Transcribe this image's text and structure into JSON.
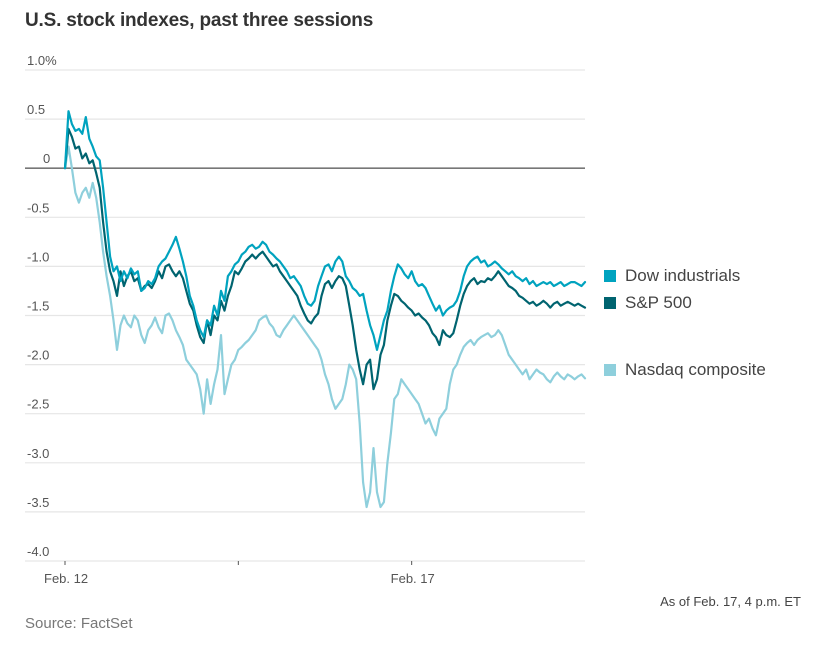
{
  "title": "U.S. stock indexes, past three sessions",
  "note": "As of Feb. 17, 4 p.m. ET",
  "source": "Source: FactSet",
  "colors": {
    "dow": "#00a3bf",
    "sp": "#006470",
    "nasdaq": "#8ecfdc",
    "grid": "#e6e6e6",
    "zero": "#777777",
    "text": "#555555"
  },
  "chart_data": {
    "type": "line",
    "title": "U.S. stock indexes, past three sessions",
    "xlabel": "",
    "ylabel": "",
    "ylim": [
      -4.0,
      1.0
    ],
    "xlim": [
      0,
      3
    ],
    "x_unit": "trading sessions elapsed",
    "yticks": [
      1.0,
      0.5,
      0,
      -0.5,
      -1.0,
      -1.5,
      -2.0,
      -2.5,
      -3.0,
      -3.5,
      -4.0
    ],
    "ytick_labels": [
      "1.0%",
      "0.5",
      "0",
      "-0.5",
      "-1.0",
      "-1.5",
      "-2.0",
      "-2.5",
      "-3.0",
      "-3.5",
      "-4.0"
    ],
    "xticks": [
      0,
      1,
      2
    ],
    "xtick_labels": [
      "Feb. 12",
      "",
      "Feb. 17"
    ],
    "grid": true,
    "legend_position": "right",
    "x": [
      0.0,
      0.02,
      0.04,
      0.06,
      0.08,
      0.1,
      0.12,
      0.14,
      0.16,
      0.18,
      0.2,
      0.22,
      0.24,
      0.26,
      0.28,
      0.3,
      0.32,
      0.34,
      0.36,
      0.38,
      0.4,
      0.42,
      0.44,
      0.46,
      0.48,
      0.5,
      0.52,
      0.54,
      0.56,
      0.58,
      0.6,
      0.62,
      0.64,
      0.66,
      0.68,
      0.7,
      0.72,
      0.74,
      0.76,
      0.78,
      0.8,
      0.82,
      0.84,
      0.86,
      0.88,
      0.9,
      0.92,
      0.94,
      0.96,
      0.98,
      1.0,
      1.02,
      1.04,
      1.06,
      1.08,
      1.1,
      1.12,
      1.14,
      1.16,
      1.18,
      1.2,
      1.22,
      1.24,
      1.26,
      1.28,
      1.3,
      1.32,
      1.34,
      1.36,
      1.38,
      1.4,
      1.42,
      1.44,
      1.46,
      1.48,
      1.5,
      1.52,
      1.54,
      1.56,
      1.58,
      1.6,
      1.62,
      1.64,
      1.66,
      1.68,
      1.7,
      1.72,
      1.74,
      1.76,
      1.78,
      1.8,
      1.82,
      1.84,
      1.86,
      1.88,
      1.9,
      1.92,
      1.94,
      1.96,
      1.98,
      2.0,
      2.02,
      2.04,
      2.06,
      2.08,
      2.1,
      2.12,
      2.14,
      2.16,
      2.18,
      2.2,
      2.22,
      2.24,
      2.26,
      2.28,
      2.3,
      2.32,
      2.34,
      2.36,
      2.38,
      2.4,
      2.42,
      2.44,
      2.46,
      2.48,
      2.5,
      2.52,
      2.54,
      2.56,
      2.58,
      2.6,
      2.62,
      2.64,
      2.66,
      2.68,
      2.7,
      2.72,
      2.74,
      2.76,
      2.78,
      2.8,
      2.82,
      2.84,
      2.86,
      2.88,
      2.9,
      2.92,
      2.94,
      2.96,
      2.98,
      3.0
    ],
    "series": [
      {
        "name": "Dow industrials",
        "key": "dow",
        "values": [
          0.0,
          0.58,
          0.45,
          0.38,
          0.4,
          0.35,
          0.52,
          0.3,
          0.22,
          0.12,
          0.08,
          -0.2,
          -0.55,
          -0.9,
          -1.05,
          -1.0,
          -1.15,
          -1.05,
          -1.12,
          -1.02,
          -1.08,
          -1.05,
          -1.25,
          -1.22,
          -1.15,
          -1.18,
          -1.12,
          -1.0,
          -0.95,
          -0.92,
          -0.85,
          -0.78,
          -0.7,
          -0.82,
          -0.95,
          -1.1,
          -1.3,
          -1.4,
          -1.55,
          -1.65,
          -1.72,
          -1.55,
          -1.6,
          -1.4,
          -1.5,
          -1.25,
          -1.35,
          -1.1,
          -1.05,
          -0.98,
          -0.95,
          -0.88,
          -0.85,
          -0.8,
          -0.78,
          -0.82,
          -0.8,
          -0.75,
          -0.78,
          -0.85,
          -0.88,
          -0.92,
          -0.95,
          -1.0,
          -1.05,
          -1.12,
          -1.1,
          -1.15,
          -1.2,
          -1.3,
          -1.38,
          -1.4,
          -1.35,
          -1.2,
          -1.1,
          -1.0,
          -0.98,
          -1.05,
          -0.95,
          -0.9,
          -0.95,
          -1.1,
          -1.15,
          -1.22,
          -1.25,
          -1.3,
          -1.28,
          -1.45,
          -1.6,
          -1.7,
          -1.85,
          -1.7,
          -1.55,
          -1.45,
          -1.25,
          -1.1,
          -0.98,
          -1.02,
          -1.08,
          -1.12,
          -1.05,
          -1.15,
          -1.2,
          -1.18,
          -1.22,
          -1.3,
          -1.38,
          -1.45,
          -1.4,
          -1.5,
          -1.45,
          -1.42,
          -1.4,
          -1.35,
          -1.25,
          -1.1,
          -1.0,
          -0.95,
          -0.92,
          -0.9,
          -0.96,
          -0.94,
          -1.0,
          -0.98,
          -0.95,
          -0.98,
          -1.02,
          -1.05,
          -1.08,
          -1.05,
          -1.1,
          -1.12,
          -1.15,
          -1.12,
          -1.18,
          -1.15,
          -1.2,
          -1.18,
          -1.16,
          -1.18,
          -1.16,
          -1.2,
          -1.18,
          -1.16,
          -1.2,
          -1.18,
          -1.16,
          -1.16,
          -1.18,
          -1.2,
          -1.16
        ]
      },
      {
        "name": "S&P 500",
        "key": "sp",
        "values": [
          0.0,
          0.4,
          0.32,
          0.2,
          0.22,
          0.1,
          0.15,
          0.05,
          0.08,
          -0.05,
          -0.2,
          -0.55,
          -0.85,
          -1.05,
          -1.15,
          -1.3,
          -1.05,
          -1.2,
          -1.1,
          -1.05,
          -1.15,
          -1.12,
          -1.25,
          -1.2,
          -1.18,
          -1.22,
          -1.15,
          -1.05,
          -1.12,
          -1.0,
          -0.98,
          -1.05,
          -1.1,
          -1.05,
          -1.12,
          -1.25,
          -1.38,
          -1.45,
          -1.6,
          -1.72,
          -1.78,
          -1.55,
          -1.7,
          -1.5,
          -1.55,
          -1.35,
          -1.45,
          -1.3,
          -1.2,
          -1.05,
          -1.08,
          -1.02,
          -0.95,
          -0.92,
          -0.88,
          -0.92,
          -0.88,
          -0.85,
          -0.9,
          -0.95,
          -1.0,
          -0.98,
          -1.05,
          -1.1,
          -1.15,
          -1.2,
          -1.25,
          -1.3,
          -1.4,
          -1.48,
          -1.55,
          -1.58,
          -1.52,
          -1.48,
          -1.3,
          -1.18,
          -1.15,
          -1.22,
          -1.15,
          -1.1,
          -1.12,
          -1.2,
          -1.4,
          -1.6,
          -1.85,
          -2.05,
          -2.2,
          -2.0,
          -1.95,
          -2.25,
          -2.15,
          -1.9,
          -1.8,
          -1.55,
          -1.4,
          -1.28,
          -1.3,
          -1.35,
          -1.38,
          -1.42,
          -1.45,
          -1.5,
          -1.48,
          -1.52,
          -1.55,
          -1.6,
          -1.68,
          -1.72,
          -1.8,
          -1.65,
          -1.7,
          -1.72,
          -1.68,
          -1.55,
          -1.4,
          -1.28,
          -1.2,
          -1.15,
          -1.12,
          -1.18,
          -1.15,
          -1.16,
          -1.12,
          -1.14,
          -1.1,
          -1.05,
          -1.1,
          -1.15,
          -1.2,
          -1.22,
          -1.25,
          -1.3,
          -1.32,
          -1.35,
          -1.38,
          -1.36,
          -1.4,
          -1.38,
          -1.35,
          -1.38,
          -1.42,
          -1.38,
          -1.36,
          -1.4,
          -1.38,
          -1.36,
          -1.38,
          -1.4,
          -1.38,
          -1.4,
          -1.42
        ]
      },
      {
        "name": "Nasdaq composite",
        "key": "nasdaq",
        "values": [
          0.0,
          0.22,
          0.0,
          -0.25,
          -0.35,
          -0.25,
          -0.2,
          -0.3,
          -0.15,
          -0.3,
          -0.55,
          -0.85,
          -1.1,
          -1.3,
          -1.55,
          -1.85,
          -1.6,
          -1.5,
          -1.58,
          -1.62,
          -1.5,
          -1.55,
          -1.7,
          -1.78,
          -1.65,
          -1.6,
          -1.52,
          -1.62,
          -1.68,
          -1.5,
          -1.48,
          -1.55,
          -1.65,
          -1.72,
          -1.8,
          -1.95,
          -2.0,
          -2.05,
          -2.1,
          -2.25,
          -2.5,
          -2.15,
          -2.4,
          -2.2,
          -2.05,
          -1.7,
          -2.3,
          -2.15,
          -2.0,
          -1.95,
          -1.85,
          -1.82,
          -1.78,
          -1.75,
          -1.7,
          -1.65,
          -1.55,
          -1.52,
          -1.5,
          -1.58,
          -1.62,
          -1.7,
          -1.72,
          -1.65,
          -1.6,
          -1.55,
          -1.5,
          -1.55,
          -1.6,
          -1.65,
          -1.7,
          -1.75,
          -1.8,
          -1.85,
          -1.95,
          -2.1,
          -2.2,
          -2.35,
          -2.45,
          -2.4,
          -2.35,
          -2.2,
          -2.0,
          -2.05,
          -2.15,
          -2.6,
          -3.2,
          -3.45,
          -3.3,
          -2.85,
          -3.3,
          -3.45,
          -3.4,
          -3.0,
          -2.7,
          -2.35,
          -2.3,
          -2.15,
          -2.2,
          -2.25,
          -2.3,
          -2.35,
          -2.4,
          -2.5,
          -2.6,
          -2.55,
          -2.65,
          -2.72,
          -2.55,
          -2.5,
          -2.45,
          -2.2,
          -2.05,
          -2.0,
          -1.9,
          -1.82,
          -1.78,
          -1.75,
          -1.8,
          -1.75,
          -1.72,
          -1.7,
          -1.68,
          -1.72,
          -1.7,
          -1.65,
          -1.7,
          -1.8,
          -1.9,
          -1.95,
          -2.0,
          -2.05,
          -2.1,
          -2.05,
          -2.15,
          -2.1,
          -2.05,
          -2.08,
          -2.1,
          -2.15,
          -2.18,
          -2.12,
          -2.08,
          -2.12,
          -2.15,
          -2.1,
          -2.12,
          -2.15,
          -2.12,
          -2.1,
          -2.14
        ]
      }
    ]
  }
}
